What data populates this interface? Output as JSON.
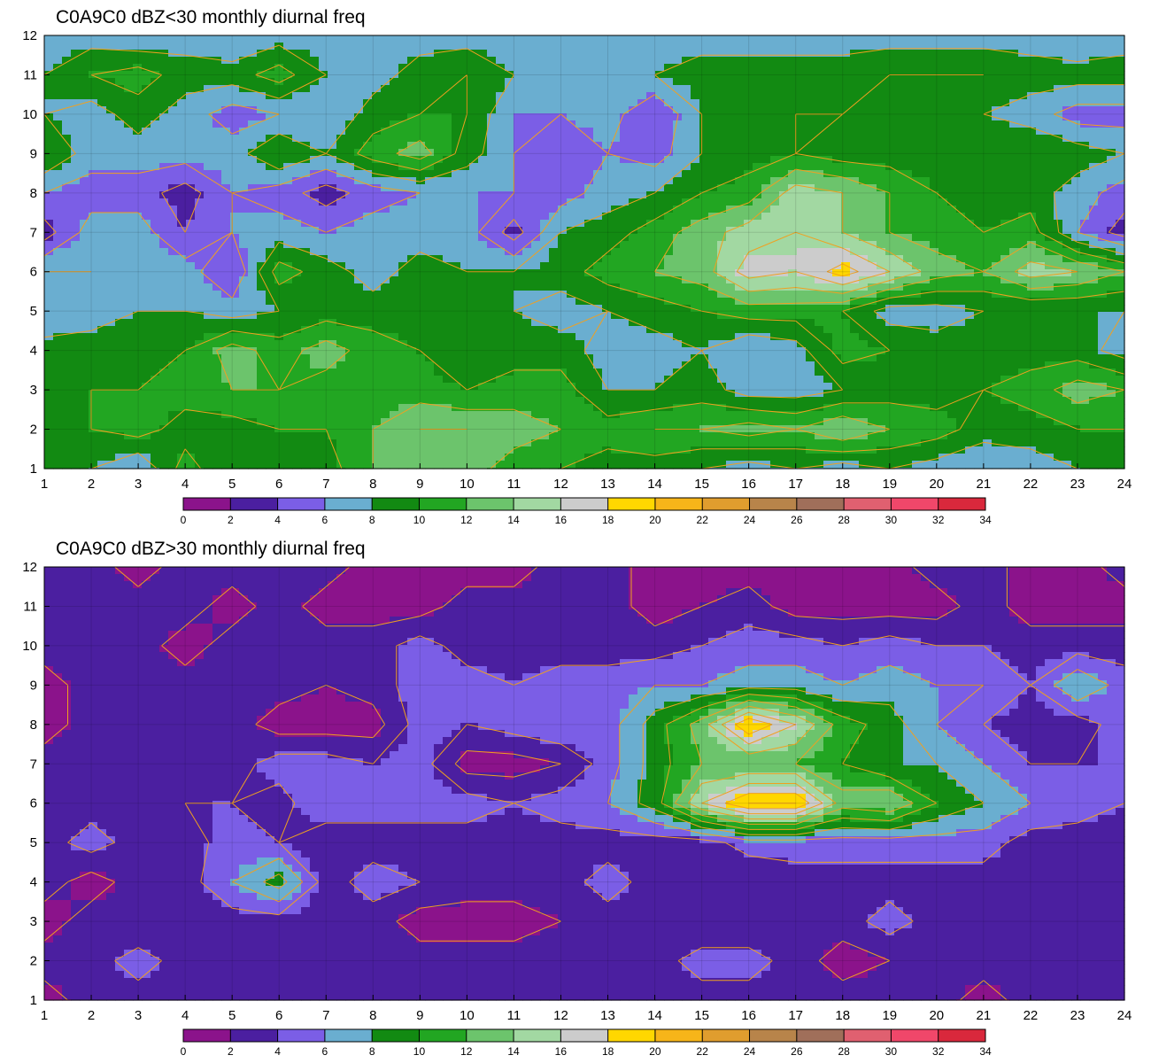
{
  "colorbar": {
    "levels": [
      0,
      2,
      4,
      6,
      8,
      10,
      12,
      14,
      16,
      18,
      20,
      22,
      24,
      26,
      28,
      30,
      32,
      34
    ],
    "colors": [
      "#8b138b",
      "#4b1fa0",
      "#7b5ee6",
      "#6aaed0",
      "#128a12",
      "#22a622",
      "#6cc46c",
      "#a2d8a2",
      "#cccccc",
      "#ffd700",
      "#f7b519",
      "#e09d2e",
      "#b8844a",
      "#a06f5a",
      "#e06070",
      "#f0476a",
      "#d9283c"
    ],
    "contour_line_color": "#f0a020"
  },
  "chart_data": [
    {
      "type": "heatmap",
      "title": "C0A9C0 dBZ<30 monthly diurnal freq",
      "x": [
        1,
        2,
        3,
        4,
        5,
        6,
        7,
        8,
        9,
        10,
        11,
        12,
        13,
        14,
        15,
        16,
        17,
        18,
        19,
        20,
        21,
        22,
        23,
        24
      ],
      "y": [
        1,
        2,
        3,
        4,
        5,
        6,
        7,
        8,
        9,
        10,
        11,
        12
      ],
      "xlim": [
        1,
        24
      ],
      "ylim": [
        1,
        12
      ],
      "xticks": [
        "1",
        "2",
        "3",
        "4",
        "5",
        "6",
        "7",
        "8",
        "9",
        "10",
        "11",
        "12",
        "13",
        "14",
        "15",
        "16",
        "17",
        "18",
        "19",
        "20",
        "21",
        "22",
        "23",
        "24"
      ],
      "yticks": [
        "1",
        "2",
        "3",
        "4",
        "5",
        "6",
        "7",
        "8",
        "9",
        "10",
        "11",
        "12"
      ],
      "grid": true,
      "values": [
        [
          8,
          8,
          6,
          11,
          8,
          9,
          9,
          12,
          13,
          13,
          11,
          10,
          9,
          9,
          8,
          7,
          8,
          7,
          8,
          7,
          6,
          7,
          8,
          8
        ],
        [
          9,
          10,
          11,
          9,
          9,
          10,
          10,
          12,
          14,
          14,
          13,
          12,
          11,
          12,
          12,
          13,
          12,
          14,
          12,
          11,
          9,
          9,
          10,
          10
        ],
        [
          8,
          10,
          10,
          11,
          12,
          12,
          11,
          11,
          11,
          10,
          11,
          11,
          8,
          8,
          9,
          7,
          7,
          8,
          9,
          9,
          10,
          11,
          13,
          12
        ],
        [
          9,
          9,
          9,
          10,
          13,
          11,
          13,
          11,
          10,
          8,
          9,
          9,
          7,
          7,
          8,
          6,
          7,
          11,
          10,
          9,
          9,
          9,
          9,
          7
        ],
        [
          6,
          7,
          8,
          8,
          7,
          8,
          9,
          9,
          9,
          8,
          8,
          7,
          8,
          9,
          10,
          11,
          11,
          10,
          7,
          7,
          8,
          8,
          8,
          8
        ],
        [
          8,
          8,
          7,
          7,
          4,
          11,
          9,
          7,
          9,
          8,
          8,
          9,
          11,
          12,
          13,
          17,
          16,
          19,
          16,
          13,
          12,
          15,
          14,
          12
        ],
        [
          3,
          7,
          7,
          4,
          6,
          7,
          6,
          7,
          7,
          7,
          3,
          8,
          9,
          11,
          13,
          15,
          16,
          14,
          12,
          11,
          10,
          11,
          6,
          3
        ],
        [
          6,
          5,
          5,
          3,
          6,
          5,
          3,
          5,
          6,
          6,
          6,
          5,
          7,
          8,
          10,
          11,
          15,
          14,
          12,
          10,
          9,
          9,
          7,
          5
        ],
        [
          10,
          7,
          7,
          7,
          7,
          10,
          8,
          11,
          13,
          9,
          6,
          4,
          6,
          5,
          8,
          9,
          10,
          9,
          9,
          9,
          9,
          10,
          9,
          8
        ],
        [
          8,
          7,
          9,
          7,
          5,
          6,
          6,
          9,
          10,
          10,
          6,
          6,
          7,
          4,
          8,
          9,
          10,
          10,
          9,
          9,
          8,
          7,
          5,
          5
        ],
        [
          8,
          10,
          11,
          9,
          9,
          11,
          8,
          7,
          9,
          10,
          8,
          7,
          7,
          8,
          9,
          9,
          9,
          9,
          10,
          10,
          10,
          9,
          9,
          9
        ],
        [
          7,
          7,
          6,
          7,
          6,
          7,
          7,
          7,
          7,
          7,
          7,
          7,
          6,
          7,
          7,
          7,
          7,
          7,
          7,
          7,
          7,
          7,
          6,
          7
        ]
      ]
    },
    {
      "type": "heatmap",
      "title": "C0A9C0 dBZ>30 monthly diurnal freq",
      "x": [
        1,
        2,
        3,
        4,
        5,
        6,
        7,
        8,
        9,
        10,
        11,
        12,
        13,
        14,
        15,
        16,
        17,
        18,
        19,
        20,
        21,
        22,
        23,
        24
      ],
      "y": [
        1,
        2,
        3,
        4,
        5,
        6,
        7,
        8,
        9,
        10,
        11,
        12
      ],
      "xlim": [
        1,
        24
      ],
      "ylim": [
        1,
        12
      ],
      "xticks": [
        "1",
        "2",
        "3",
        "4",
        "5",
        "6",
        "7",
        "8",
        "9",
        "10",
        "11",
        "12",
        "13",
        "14",
        "15",
        "16",
        "17",
        "18",
        "19",
        "20",
        "21",
        "22",
        "23",
        "24"
      ],
      "yticks": [
        "1",
        "2",
        "3",
        "4",
        "5",
        "6",
        "7",
        "8",
        "9",
        "10",
        "11",
        "12"
      ],
      "grid": true,
      "values": [
        [
          1,
          3,
          3,
          3,
          3,
          3,
          3,
          3,
          3,
          3,
          3,
          3,
          3,
          3,
          3,
          3,
          3,
          3,
          3,
          3,
          1,
          3,
          3,
          3
        ],
        [
          3,
          3,
          5,
          3,
          3,
          3,
          3,
          3,
          3,
          3,
          3,
          3,
          3,
          3,
          5,
          5,
          3,
          1,
          2,
          2,
          3,
          3,
          3,
          3
        ],
        [
          1,
          3,
          2,
          3,
          3,
          3,
          3,
          3,
          1,
          1,
          1,
          2,
          3,
          3,
          2,
          2,
          3,
          3,
          5,
          3,
          3,
          3,
          3,
          3
        ],
        [
          3,
          1,
          3,
          3,
          6,
          9,
          3,
          5,
          4,
          3,
          3,
          3,
          5,
          3,
          2,
          2,
          3,
          3,
          3,
          3,
          3,
          3,
          3,
          3
        ],
        [
          3,
          5,
          3,
          3,
          5,
          4,
          2,
          3,
          3,
          3,
          3,
          3,
          3,
          3,
          3,
          5,
          5,
          5,
          5,
          5,
          5,
          3,
          3,
          3
        ],
        [
          3,
          3,
          3,
          4,
          4,
          3,
          6,
          5,
          5,
          5,
          4,
          5,
          6,
          9,
          16,
          20,
          20,
          13,
          14,
          10,
          8,
          6,
          5,
          4
        ],
        [
          3,
          3,
          3,
          3,
          3,
          5,
          5,
          4,
          5,
          1,
          1,
          2,
          5,
          9,
          12,
          12,
          12,
          10,
          8,
          8,
          6,
          4,
          4,
          4
        ],
        [
          1,
          3,
          3,
          3,
          3,
          1,
          1,
          1,
          5,
          4,
          5,
          6,
          5,
          9,
          13,
          20,
          16,
          11,
          9,
          6,
          4,
          3,
          3,
          5
        ],
        [
          1,
          3,
          3,
          3,
          3,
          3,
          2,
          3,
          5,
          5,
          4,
          5,
          5,
          6,
          6,
          7,
          7,
          6,
          7,
          6,
          6,
          4,
          8,
          5
        ],
        [
          3,
          3,
          3,
          1,
          3,
          3,
          3,
          3,
          5,
          3,
          3,
          3,
          3,
          3,
          4,
          5,
          5,
          4,
          5,
          4,
          4,
          3,
          3,
          3
        ],
        [
          3,
          3,
          3,
          3,
          1,
          3,
          1,
          1,
          1,
          3,
          3,
          3,
          3,
          1,
          2,
          3,
          1,
          1,
          1,
          1,
          3,
          1,
          1,
          1
        ],
        [
          3,
          3,
          1,
          3,
          3,
          3,
          3,
          1,
          1,
          1,
          1,
          3,
          3,
          1,
          1,
          1,
          1,
          1,
          1,
          3,
          3,
          1,
          1,
          3
        ]
      ]
    }
  ]
}
